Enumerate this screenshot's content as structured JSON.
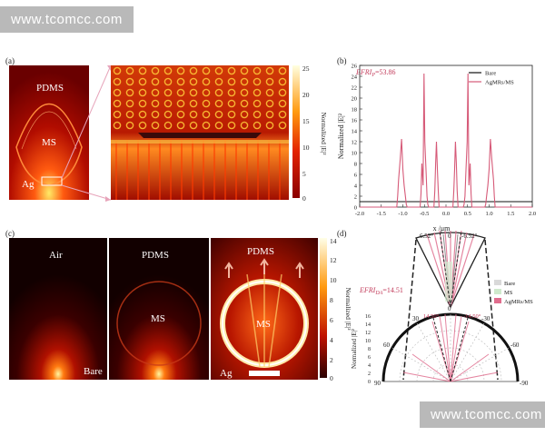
{
  "watermark": {
    "top": "www.tcomcc.com",
    "bottom": "www.tcomcc.com"
  },
  "panel_a": {
    "label": "(a)",
    "regions": {
      "pdms": "PDMS",
      "ms": "MS",
      "ag": "Ag"
    },
    "colorbar": {
      "ticks": [
        "25",
        "20",
        "15",
        "10",
        "5",
        "0"
      ],
      "label": "Normalized |E|²"
    }
  },
  "panel_c": {
    "label": "(c)",
    "sub1": {
      "top": "Air",
      "bottom": "Bare"
    },
    "sub2": {
      "top": "PDMS",
      "mid": "MS"
    },
    "sub3": {
      "top": "PDMS",
      "mid": "MS",
      "bottom": "Ag"
    },
    "colorbar": {
      "ticks": [
        "14",
        "12",
        "10",
        "8",
        "6",
        "4",
        "2",
        "0"
      ],
      "label": "Normalized |E|²"
    }
  },
  "panel_d": {
    "label": "(d)",
    "efri_label": "EFRI",
    "efri_sub": "DA",
    "efri_value": "=14.51",
    "upper_angles": {
      "left": "6.52°",
      "zero": "0",
      "right": "-6.52°"
    },
    "lower_angles": {
      "left": "14.50°",
      "right": "-14.50°"
    },
    "zero_label": "0",
    "legend": [
      "Bare",
      "MS",
      "AgMRs/MS"
    ],
    "ylabel": "Normalized |E|²",
    "rticks": [
      "16",
      "14",
      "12",
      "10",
      "8",
      "6",
      "4",
      "2",
      "0"
    ],
    "angle_ticks": {
      "l30": "30",
      "r30": "-30",
      "l60": "60",
      "r60": "-60",
      "l90": "90",
      "r90": "-90"
    }
  },
  "chart_data": {
    "type": "line",
    "panel": "(b)",
    "annotation": "EFRI",
    "annotation_sub": "P",
    "annotation_value": "=53.86",
    "xlabel": "x /μm",
    "ylabel": "Normalized |E|²",
    "xlim": [
      -2.0,
      2.0
    ],
    "ylim": [
      0,
      26
    ],
    "xticks": [
      -2.0,
      -1.5,
      -1.0,
      -0.5,
      0.0,
      0.5,
      1.0,
      1.5,
      2.0
    ],
    "yticks": [
      0,
      2,
      4,
      6,
      8,
      10,
      12,
      14,
      16,
      18,
      20,
      22,
      24,
      26
    ],
    "legend": {
      "position": "top-right"
    },
    "series": [
      {
        "name": "Bare",
        "color": "#111111",
        "x": [
          -2.0,
          2.0
        ],
        "y": [
          1.0,
          1.0
        ]
      },
      {
        "name": "AgMRs/MS",
        "color": "#d65a78",
        "x": [
          -2.0,
          -1.14,
          -1.12,
          -1.1,
          -1.06,
          -1.03,
          -1.0,
          -0.97,
          -0.94,
          -0.92,
          -0.9,
          -0.6,
          -0.58,
          -0.56,
          -0.53,
          -0.51,
          -0.49,
          -0.46,
          -0.44,
          -0.42,
          -0.4,
          -0.28,
          -0.26,
          -0.24,
          -0.22,
          -0.2,
          -0.18,
          -0.16,
          0.16,
          0.18,
          0.2,
          0.22,
          0.24,
          0.26,
          0.28,
          0.4,
          0.42,
          0.44,
          0.46,
          0.49,
          0.51,
          0.53,
          0.56,
          0.58,
          0.6,
          0.9,
          0.92,
          0.94,
          0.97,
          1.0,
          1.03,
          1.06,
          1.1,
          1.12,
          1.14,
          2.0
        ],
        "y": [
          0.0,
          0.0,
          2.0,
          5.0,
          9.0,
          12.5,
          7.0,
          4.0,
          2.0,
          0.5,
          0.0,
          0.0,
          2.5,
          8.0,
          4.0,
          24.5,
          12.0,
          6.0,
          2.0,
          0.5,
          0.0,
          0.0,
          3.0,
          8.0,
          12.0,
          7.0,
          3.0,
          0.0,
          0.0,
          3.0,
          7.0,
          12.0,
          8.0,
          3.0,
          0.0,
          0.0,
          0.5,
          2.0,
          6.0,
          12.0,
          24.5,
          4.0,
          8.0,
          2.5,
          0.0,
          0.0,
          0.5,
          2.0,
          4.0,
          7.0,
          12.5,
          9.0,
          5.0,
          2.0,
          0.0,
          0.0
        ]
      }
    ]
  }
}
